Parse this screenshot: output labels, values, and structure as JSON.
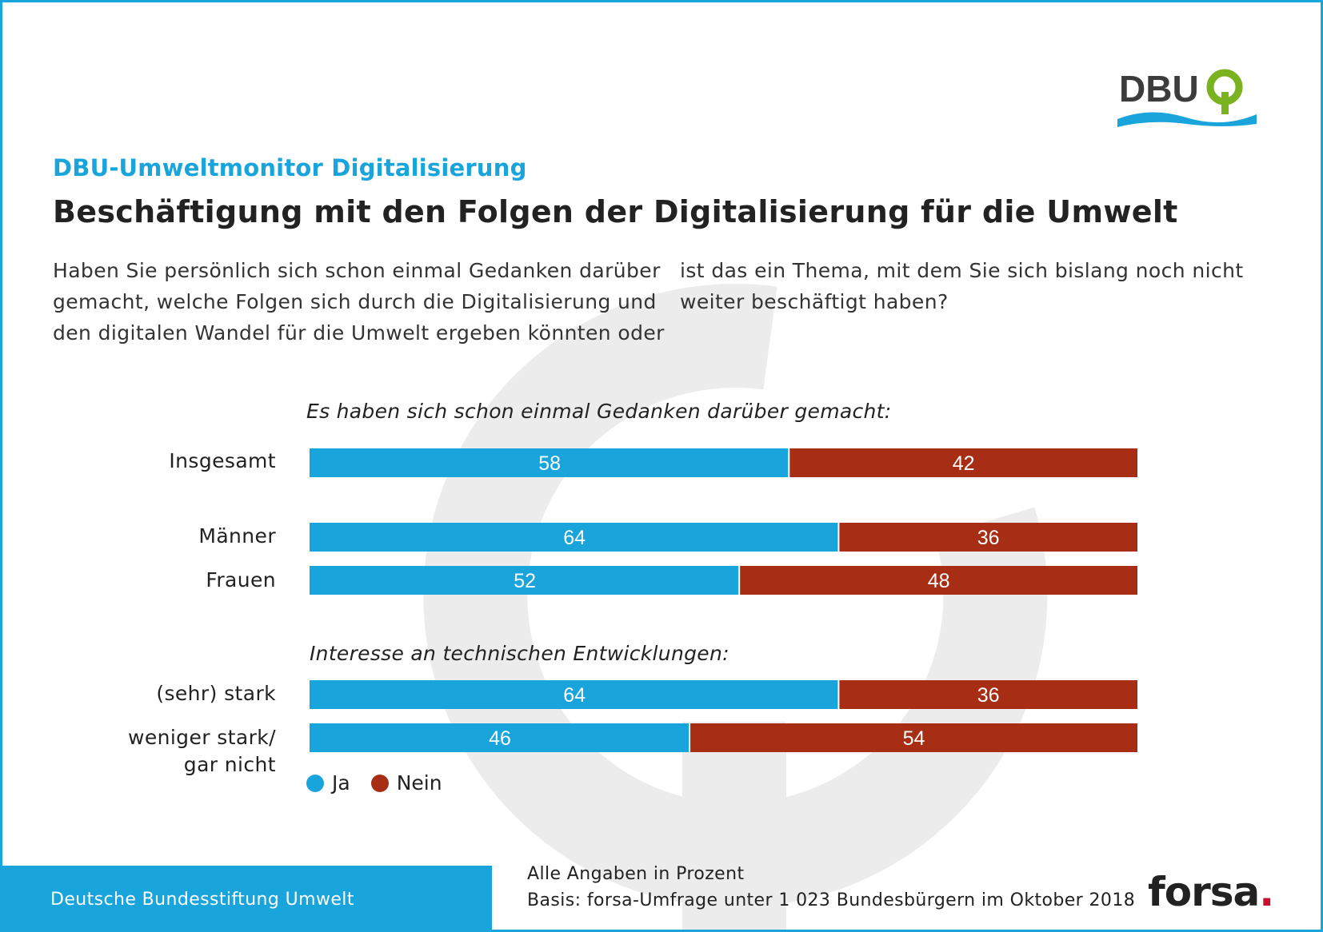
{
  "colors": {
    "ja": "#1aa4dc",
    "nein": "#a72d15",
    "accent": "#1aa4dc",
    "frame": "#1aa4dc"
  },
  "logo": {
    "text": "DBU"
  },
  "header": {
    "kicker": "DBU-Umweltmonitor Digitalisierung",
    "title": "Beschäftigung mit den Folgen der Digitalisierung für die Umwelt"
  },
  "question": {
    "lines_left": [
      "Haben Sie persönlich sich schon einmal Gedanken darüber",
      "gemacht, welche Folgen sich durch die Digitalisierung und",
      "den digitalen Wandel für die Umwelt ergeben könnten oder"
    ],
    "lines_right": [
      "ist das ein Thema, mit dem Sie sich bislang noch nicht",
      "weiter beschäftigt haben?"
    ]
  },
  "chart_data": {
    "type": "bar",
    "orientation": "horizontal",
    "stacked": true,
    "xlim": [
      0,
      100
    ],
    "subheads": [
      "Es haben sich schon einmal Gedanken darüber gemacht:",
      "Interesse an technischen Entwicklungen:"
    ],
    "categories": [
      [
        "Insgesamt"
      ],
      [
        "Männer"
      ],
      [
        "Frauen"
      ],
      [
        "(sehr) stark"
      ],
      [
        "weniger stark/",
        "gar nicht"
      ]
    ],
    "series": [
      {
        "name": "Ja",
        "values": [
          58,
          64,
          52,
          64,
          46
        ]
      },
      {
        "name": "Nein",
        "values": [
          42,
          36,
          48,
          36,
          54
        ]
      }
    ],
    "legend": [
      "Ja",
      "Nein"
    ],
    "legend_position": "bottom-left"
  },
  "footer": {
    "organization": "Deutsche Bundesstiftung Umwelt",
    "note_line1": "Alle Angaben in Prozent",
    "note_line2": "Basis: forsa-Umfrage unter 1 023 Bundesbürgern im Oktober 2018",
    "brand": "forsa",
    "brand_suffix": "."
  }
}
